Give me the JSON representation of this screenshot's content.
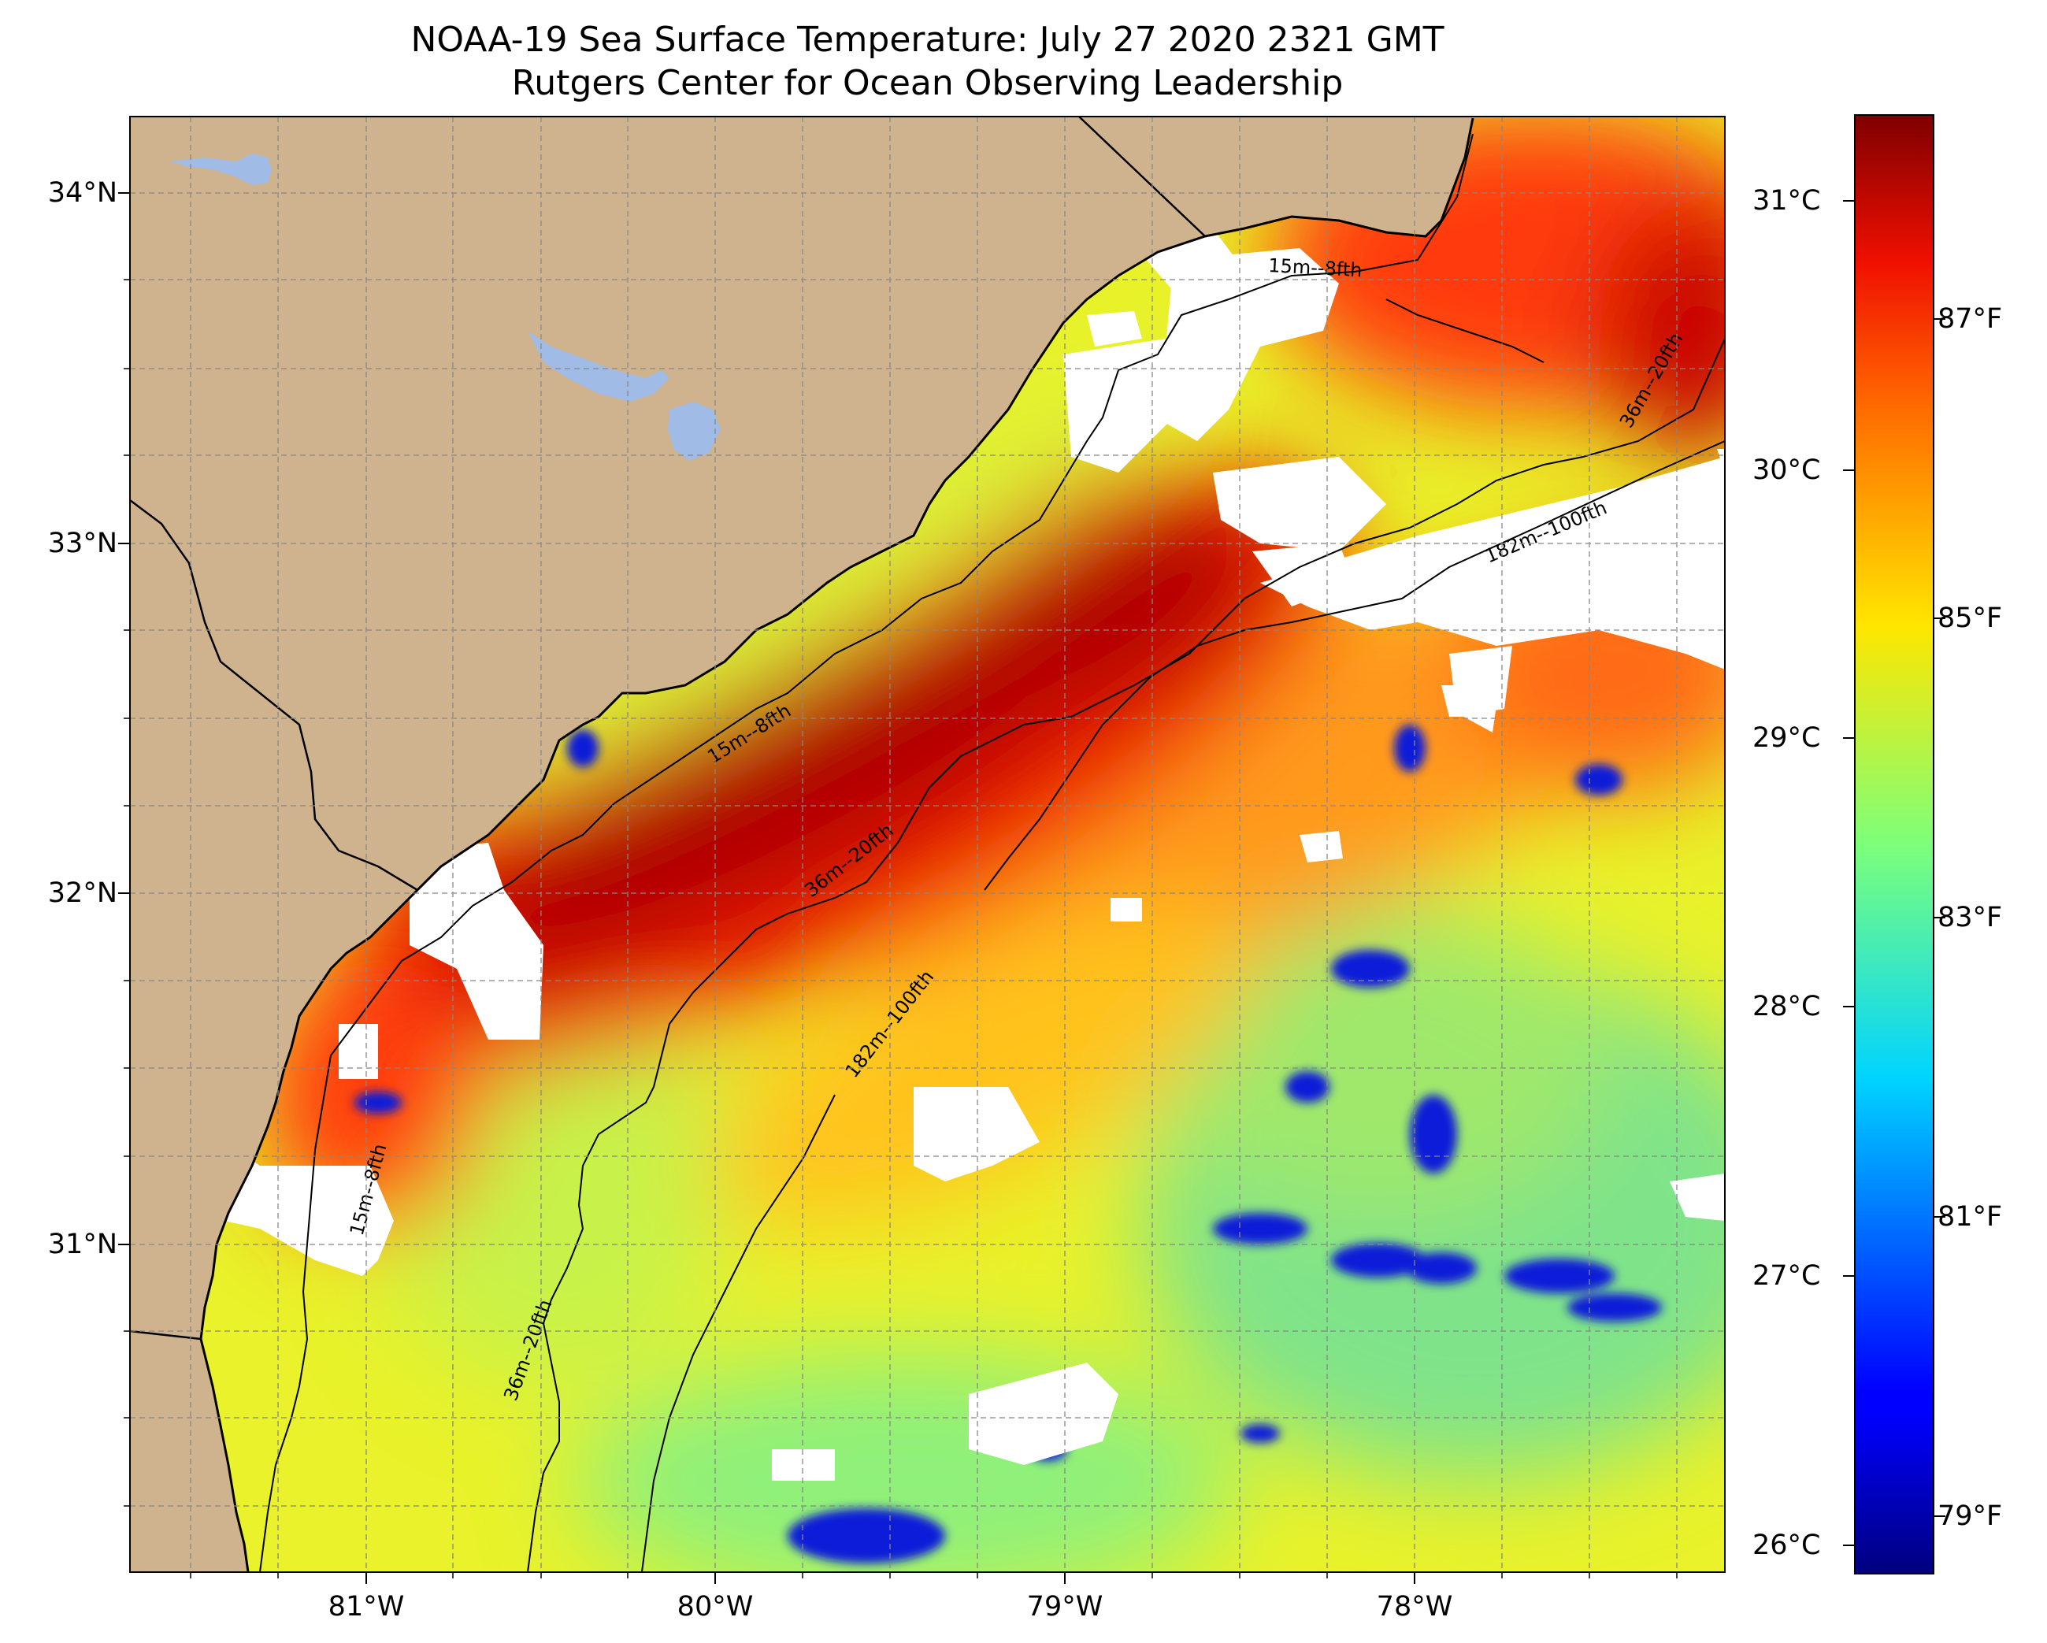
{
  "title": "NOAA-19 Sea Surface Temperature: July 27 2020 2321 GMT",
  "subtitle": "Rutgers Center for Ocean Observing Leadership",
  "lat_labels": [
    "34°N",
    "33°N",
    "32°N",
    "31°N"
  ],
  "lon_labels": [
    "81°W",
    "80°W",
    "79°W",
    "78°W"
  ],
  "colorbar": {
    "celsius_labels": [
      "31°C",
      "30°C",
      "29°C",
      "28°C",
      "27°C",
      "26°C"
    ],
    "fahrenheit_labels": [
      "87°F",
      "85°F",
      "83°F",
      "81°F",
      "79°F"
    ],
    "colormap": "jet"
  },
  "contour_labels": [
    "15m--8fth",
    "36m--20fth",
    "182m--100fth",
    "15m--8fth",
    "36m--20fth",
    "182m--100fth",
    "15m--8fth",
    "36m--20fth"
  ],
  "colors": {
    "land": "#cfb38e",
    "lakes": "#9fbbe6",
    "cloud_mask": "#ffffff",
    "coastline": "#000000"
  }
}
